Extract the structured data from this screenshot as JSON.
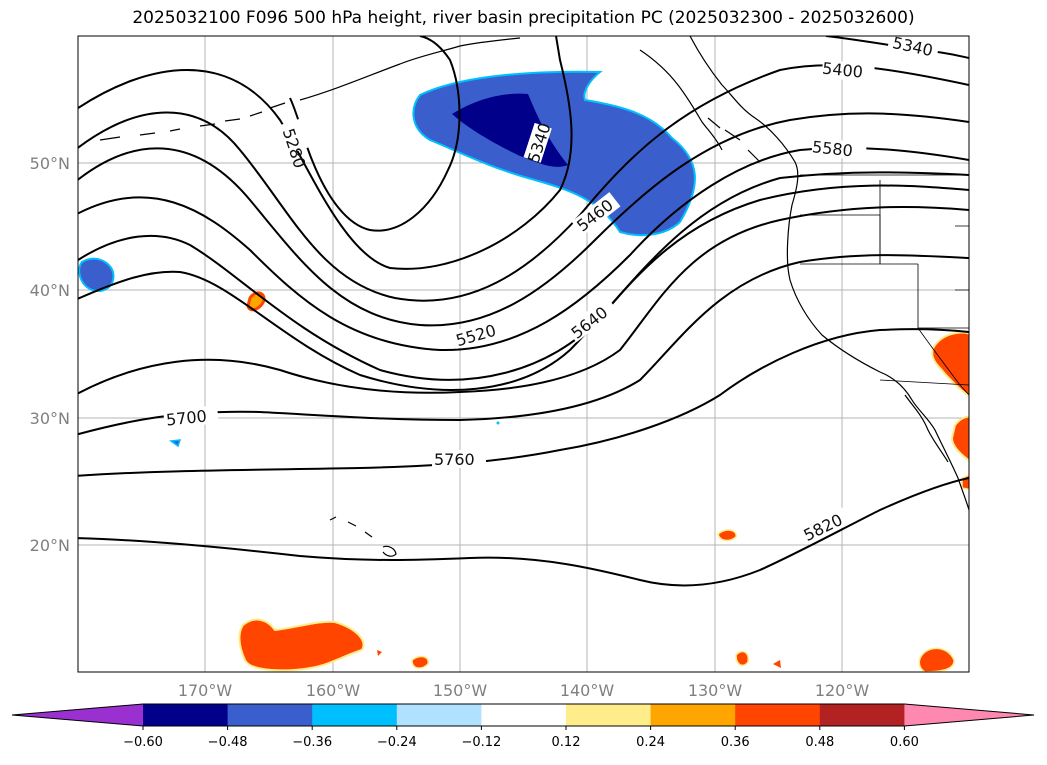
{
  "title": "2025032100 F096 500 hPa height, river basin precipitation PC (2025032300 - 2025032600)",
  "lat_labels": [
    "50°N",
    "40°N",
    "30°N",
    "20°N"
  ],
  "lon_labels": [
    "170°W",
    "160°W",
    "150°W",
    "140°W",
    "130°W",
    "120°W"
  ],
  "contour_labels": [
    "5280",
    "5340",
    "5340",
    "5400",
    "5460",
    "5520",
    "5580",
    "5640",
    "5700",
    "5760",
    "5820"
  ],
  "colorbar": {
    "ticks": [
      "−0.60",
      "−0.48",
      "−0.36",
      "−0.24",
      "−0.12",
      "0.12",
      "0.24",
      "0.36",
      "0.48",
      "0.60"
    ],
    "colors": [
      "#9b30d0",
      "#00008b",
      "#3a5fcd",
      "#00bfff",
      "#b0e2ff",
      "#ffffff",
      "#ffec8b",
      "#ffa500",
      "#ff4500",
      "#b22222",
      "#ff88b0"
    ]
  }
}
